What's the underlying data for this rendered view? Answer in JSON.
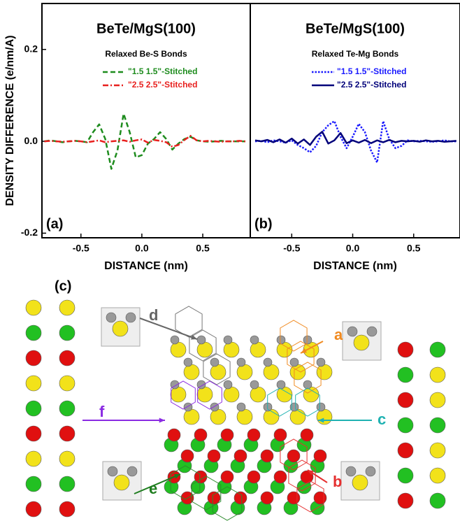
{
  "chart_data": [
    {
      "type": "line",
      "title": "BeTe/MgS(100)",
      "subtitle": "Relaxed Be-S Bonds",
      "annotation": "(a)",
      "xlabel": "DISTANCE (nm)",
      "ylabel": "DENSITY DIFFERENCE  (e/nm/A)",
      "x": [
        -0.8,
        -0.75,
        -0.7,
        -0.65,
        -0.6,
        -0.55,
        -0.5,
        -0.45,
        -0.4,
        -0.35,
        -0.3,
        -0.25,
        -0.2,
        -0.15,
        -0.1,
        -0.05,
        0,
        0.05,
        0.1,
        0.15,
        0.2,
        0.25,
        0.3,
        0.35,
        0.4,
        0.45,
        0.5,
        0.55,
        0.6,
        0.65,
        0.7,
        0.75,
        0.8,
        0.85
      ],
      "series": [
        {
          "name": "\"1.5 1.5\"-Stitched",
          "color": "#1e8c1e",
          "dash": "dashed",
          "values": [
            0,
            0.002,
            0,
            -0.002,
            0,
            0.001,
            0,
            -0.002,
            0.02,
            0.037,
            0.005,
            -0.06,
            -0.02,
            0.06,
            0.02,
            -0.035,
            -0.03,
            -0.005,
            0.005,
            0.02,
            0.005,
            -0.018,
            -0.005,
            0.005,
            0.01,
            0.002,
            0,
            -0.001,
            0,
            0.001,
            0,
            0,
            0,
            0
          ]
        },
        {
          "name": "\"2.5 2.5\"-Stitched",
          "color": "#e8201e",
          "dash": "dashdot",
          "values": [
            0,
            0.001,
            0,
            -0.001,
            0,
            0.001,
            0,
            -0.002,
            0,
            0.002,
            -0.002,
            0,
            0.001,
            0.002,
            -0.001,
            0.002,
            0.004,
            -0.003,
            0.003,
            0.001,
            -0.002,
            -0.012,
            -0.008,
            0.003,
            0.012,
            0.002,
            0,
            0.001,
            0,
            -0.001,
            0,
            0,
            0.001,
            0
          ]
        }
      ],
      "xlim": [
        -0.82,
        0.89
      ],
      "xticks": [
        -0.5,
        {
          "value": 0,
          "label": "0.0"
        },
        0.5
      ],
      "ylim": [
        -0.21,
        0.3
      ],
      "yticks": [
        -0.2,
        {
          "value": 0,
          "label": "0.0"
        },
        0.2
      ]
    },
    {
      "type": "line",
      "title": "BeTe/MgS(100)",
      "subtitle": "Relaxed Te-Mg Bonds",
      "annotation": "(b)",
      "xlabel": "DISTANCE (nm)",
      "x": [
        -0.8,
        -0.75,
        -0.7,
        -0.65,
        -0.6,
        -0.55,
        -0.5,
        -0.45,
        -0.4,
        -0.35,
        -0.3,
        -0.25,
        -0.2,
        -0.15,
        -0.1,
        -0.05,
        0,
        0.05,
        0.1,
        0.15,
        0.2,
        0.25,
        0.3,
        0.35,
        0.4,
        0.45,
        0.5,
        0.55,
        0.6,
        0.65,
        0.7,
        0.75,
        0.8,
        0.85
      ],
      "series": [
        {
          "name": "\"1.5 1.5\"-Stitched",
          "color": "#1a1aff",
          "dash": "dotted",
          "values": [
            0,
            0.001,
            -0.002,
            0.002,
            0,
            -0.003,
            0.002,
            -0.008,
            -0.015,
            -0.024,
            -0.01,
            0.02,
            0.035,
            0.044,
            0.01,
            -0.015,
            0.01,
            0.038,
            0.02,
            -0.02,
            -0.046,
            0.044,
            0.005,
            -0.015,
            -0.01,
            0.002,
            0,
            0.001,
            0,
            -0.001,
            0,
            0.002,
            0,
            0
          ]
        },
        {
          "name": "\"2.5 2.5\"-Stitched",
          "color": "#00007a",
          "dash": "solid",
          "values": [
            0.002,
            0,
            0.003,
            -0.002,
            0.004,
            -0.003,
            0.006,
            -0.005,
            0.004,
            -0.008,
            0.01,
            0.021,
            -0.005,
            0.002,
            0.018,
            -0.004,
            0.002,
            -0.003,
            0.003,
            -0.004,
            0.002,
            -0.002,
            0.003,
            -0.002,
            0.001,
            0,
            0.001,
            -0.001,
            0.002,
            0,
            0.001,
            -0.001,
            0,
            0.001
          ]
        }
      ],
      "xlim": [
        -0.84,
        0.88
      ],
      "xticks": [
        -0.5,
        {
          "value": 0,
          "label": "0.0"
        },
        0.5
      ],
      "ylim": [
        -0.21,
        0.3
      ]
    }
  ],
  "diagram": {
    "panel_label": "(c)",
    "labels": [
      "a",
      "b",
      "c",
      "d",
      "e",
      "f"
    ]
  }
}
